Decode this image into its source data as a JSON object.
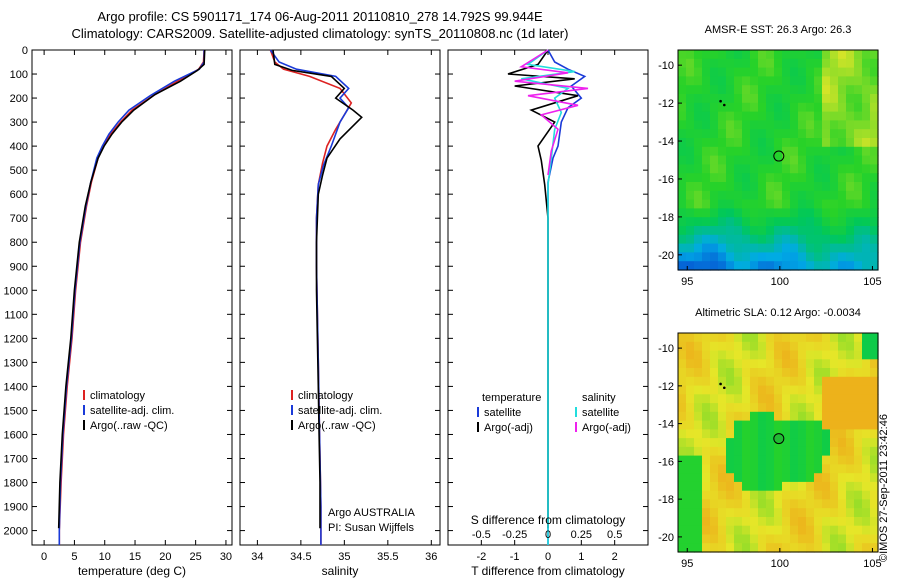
{
  "header": {
    "title_line1": "Argo profile: CS 5901171_174 06-Aug-2011 20110810_278 14.792S 99.944E",
    "title_line2": "Climatology: CARS2009. Satellite-adjusted climatology: synTS_20110808.nc (1d later)"
  },
  "footer": {
    "copyright": "©IMOS 27-Sep-2011 23:42:46"
  },
  "colors": {
    "climatology": "#dd2222",
    "satellite": "#1a3ad8",
    "argo": "#000000",
    "sal_satellite": "#22dddd",
    "sal_argo": "#ee22ee"
  },
  "chart_data": [
    {
      "type": "line",
      "panel": "temperature",
      "xlabel": "temperature (deg C)",
      "ylabel": "",
      "xlim": [
        -2,
        31
      ],
      "ylim": [
        2060,
        0
      ],
      "xticks": [
        0,
        5,
        10,
        15,
        20,
        25,
        30
      ],
      "yticks": [
        0,
        100,
        200,
        300,
        400,
        500,
        600,
        700,
        800,
        900,
        1000,
        1100,
        1200,
        1300,
        1400,
        1500,
        1600,
        1700,
        1800,
        1900,
        2000
      ],
      "legend_position": "lower-center",
      "series": [
        {
          "name": "climatology",
          "color": "#dd2222",
          "x": [
            26.4,
            26.3,
            25.5,
            22.0,
            18.0,
            14.5,
            12.6,
            11.0,
            9.8,
            8.9,
            7.8,
            7.0,
            6.0,
            5.2,
            4.6,
            3.8,
            3.2,
            2.8,
            2.5,
            2.5
          ],
          "y": [
            0,
            50,
            80,
            130,
            190,
            250,
            300,
            350,
            400,
            450,
            550,
            650,
            800,
            1000,
            1200,
            1400,
            1600,
            1800,
            2000,
            2060
          ]
        },
        {
          "name": "satellite-adj. clim.",
          "color": "#1a3ad8",
          "x": [
            26.4,
            26.4,
            25.6,
            21.5,
            17.5,
            14.0,
            12.2,
            10.7,
            9.6,
            8.7,
            7.7,
            6.9,
            5.9,
            5.1,
            4.5,
            3.7,
            3.1,
            2.7,
            2.5,
            2.5
          ],
          "y": [
            0,
            50,
            80,
            130,
            190,
            250,
            300,
            350,
            400,
            450,
            550,
            650,
            800,
            1000,
            1200,
            1400,
            1600,
            1800,
            2000,
            2060
          ]
        },
        {
          "name": "Argo(..raw -QC)",
          "color": "#000000",
          "x": [
            26.5,
            26.4,
            25.3,
            22.5,
            18.3,
            14.8,
            12.8,
            11.2,
            9.9,
            8.9,
            7.7,
            6.8,
            5.8,
            5.0,
            4.4,
            3.6,
            3.0,
            2.6,
            2.4
          ],
          "y": [
            0,
            60,
            85,
            130,
            185,
            250,
            300,
            350,
            400,
            450,
            550,
            650,
            800,
            1000,
            1200,
            1400,
            1600,
            1800,
            1990
          ]
        }
      ]
    },
    {
      "type": "line",
      "panel": "salinity",
      "xlabel": "salinity",
      "ylabel": "",
      "xlim": [
        33.8,
        36.1
      ],
      "ylim": [
        2060,
        0
      ],
      "xticks": [
        34,
        34.5,
        35,
        35.5,
        36
      ],
      "legend_position": "lower-center",
      "annotation_line1": "Argo AUSTRALIA",
      "annotation_line2": "PI: Susan Wijffels",
      "series": [
        {
          "name": "climatology",
          "color": "#dd2222",
          "x": [
            34.15,
            34.2,
            34.3,
            34.6,
            34.95,
            35.08,
            35.0,
            34.9,
            34.8,
            34.75,
            34.7,
            34.68,
            34.68,
            34.69,
            34.7,
            34.71,
            34.72,
            34.73,
            34.73,
            34.73
          ],
          "y": [
            0,
            50,
            80,
            110,
            160,
            220,
            270,
            330,
            400,
            470,
            560,
            700,
            900,
            1100,
            1300,
            1500,
            1700,
            1900,
            2000,
            2060
          ]
        },
        {
          "name": "satellite-adj. clim.",
          "color": "#1a3ad8",
          "x": [
            34.15,
            34.25,
            34.45,
            34.9,
            35.05,
            34.95,
            35.05,
            34.95,
            34.85,
            34.76,
            34.7,
            34.68,
            34.68,
            34.69,
            34.7,
            34.71,
            34.72,
            34.73,
            34.73,
            34.73
          ],
          "y": [
            0,
            50,
            80,
            110,
            160,
            200,
            240,
            300,
            400,
            480,
            560,
            700,
            900,
            1100,
            1300,
            1500,
            1700,
            1900,
            2000,
            2060
          ]
        },
        {
          "name": "Argo(..raw -QC)",
          "color": "#000000",
          "x": [
            34.18,
            34.2,
            34.4,
            34.85,
            35.0,
            34.9,
            35.1,
            35.2,
            34.95,
            34.8,
            34.75,
            34.7,
            34.68,
            34.68,
            34.69,
            34.7,
            34.71,
            34.72,
            34.72
          ],
          "y": [
            0,
            60,
            85,
            110,
            160,
            200,
            250,
            280,
            370,
            450,
            520,
            600,
            800,
            1000,
            1200,
            1400,
            1600,
            1800,
            1990
          ]
        }
      ]
    },
    {
      "type": "line",
      "panel": "difference",
      "xlabel": "T difference from climatology",
      "top_axis_label": "S difference from climatology",
      "xlim": [
        -3,
        3
      ],
      "ylim": [
        2060,
        0
      ],
      "xticks": [
        -2,
        -1,
        0,
        1,
        2
      ],
      "top_xticks": [
        "-0.5",
        "-0.25",
        "0",
        "0.25",
        "0.5"
      ],
      "legend_position": "lower-center",
      "legend_group_titles": [
        "temperature",
        "salinity"
      ],
      "series": [
        {
          "name": "satellite",
          "group": "temperature",
          "color": "#1a3ad8",
          "x": [
            0,
            0.2,
            0.6,
            1.1,
            0.7,
            1.0,
            0.6,
            0.4,
            0.3,
            0.15,
            0,
            0,
            0,
            0,
            0,
            0
          ],
          "y": [
            0,
            50,
            80,
            110,
            150,
            200,
            240,
            300,
            400,
            450,
            550,
            700,
            1000,
            1400,
            1800,
            2060
          ]
        },
        {
          "name": "Argo(-adj)",
          "group": "temperature",
          "color": "#000000",
          "x": [
            0,
            -0.3,
            -1.2,
            0.8,
            -1.0,
            0.9,
            -0.5,
            0.2,
            -0.3,
            -0.2,
            -0.1,
            0,
            0,
            0
          ],
          "y": [
            0,
            60,
            100,
            120,
            150,
            190,
            250,
            300,
            400,
            460,
            560,
            700,
            1200,
            1990
          ]
        },
        {
          "name": "satellite",
          "group": "salinity",
          "color": "#22dddd",
          "x": [
            0,
            -0.6,
            0.8,
            -0.8,
            0.6,
            0.2,
            0.4,
            0.2,
            0.1,
            0,
            0,
            0,
            0
          ],
          "y": [
            0,
            60,
            90,
            120,
            160,
            200,
            260,
            330,
            450,
            560,
            800,
            1400,
            2060
          ]
        },
        {
          "name": "Argo(-adj)",
          "group": "salinity",
          "color": "#ee22ee",
          "x": [
            0,
            -0.8,
            0.6,
            -1.0,
            1.2,
            -0.6,
            0.9,
            -0.2,
            0.3,
            0.1,
            0
          ],
          "y": [
            0,
            70,
            95,
            130,
            160,
            190,
            230,
            270,
            330,
            420,
            520
          ]
        }
      ]
    },
    {
      "type": "heatmap",
      "panel": "map_sst",
      "title": "AMSR-E SST: 26.3 Argo: 26.3",
      "xlim": [
        94.5,
        105.3
      ],
      "ylim": [
        -20.8,
        -9.2
      ],
      "xticks": [
        95,
        100,
        105
      ],
      "yticks": [
        -10,
        -12,
        -14,
        -16,
        -18,
        -20
      ],
      "argo_position": {
        "lon": 99.944,
        "lat": -14.792
      },
      "track_points": [
        {
          "lon": 96.8,
          "lat": -11.9
        },
        {
          "lon": 97.0,
          "lat": -12.1
        }
      ]
    },
    {
      "type": "heatmap",
      "panel": "map_sla",
      "title": "Altimetric SLA: 0.12 Argo: -0.0034",
      "xlim": [
        94.5,
        105.3
      ],
      "ylim": [
        -20.8,
        -9.2
      ],
      "xticks": [
        95,
        100,
        105
      ],
      "yticks": [
        -10,
        -12,
        -14,
        -16,
        -18,
        -20
      ],
      "argo_position": {
        "lon": 99.944,
        "lat": -14.792
      },
      "track_points": [
        {
          "lon": 96.8,
          "lat": -11.9
        },
        {
          "lon": 97.0,
          "lat": -12.1
        }
      ]
    }
  ]
}
